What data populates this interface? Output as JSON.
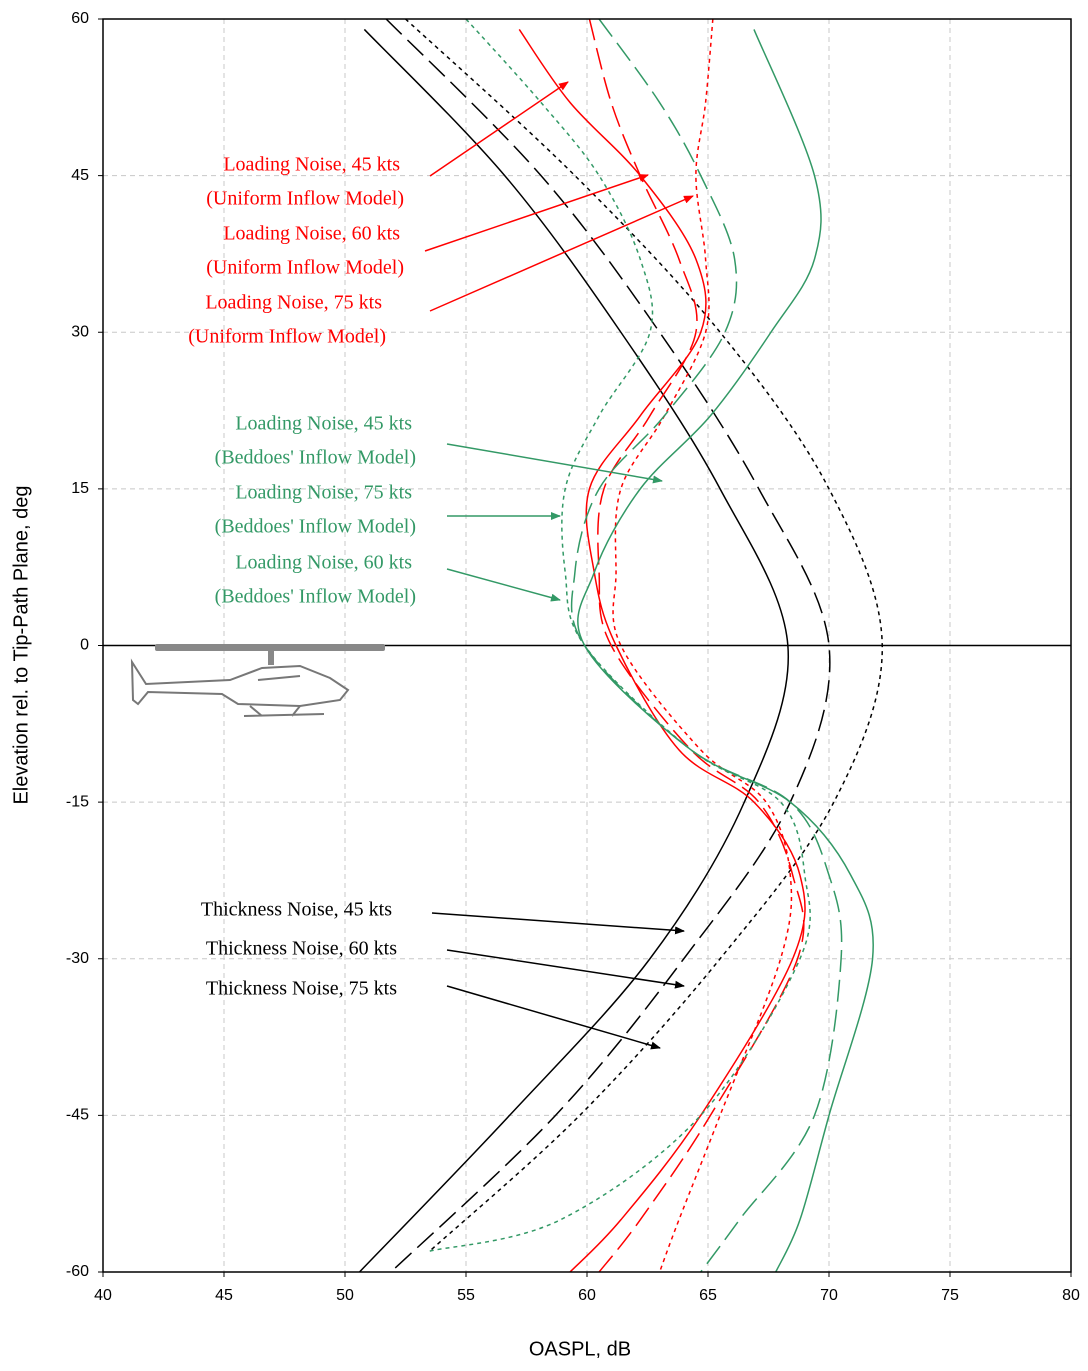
{
  "chart_data": {
    "type": "line",
    "x_label": "OASPL, dB",
    "y_label": "Elevation rel. to Tip-Path Plane, deg",
    "xlim": [
      40,
      80
    ],
    "xticks": [
      40,
      45,
      50,
      55,
      60,
      65,
      70,
      75,
      80
    ],
    "ylim": [
      -60,
      60
    ],
    "yticks": [
      -60,
      -45,
      -30,
      -15,
      0,
      15,
      30,
      45,
      60
    ],
    "grid": true,
    "series": [
      {
        "name": "Thickness Noise, 45 kts",
        "color": "#000000",
        "dash": "solid",
        "x": [
          50.8,
          56.6,
          61.4,
          65.5,
          68.3,
          66.5,
          62.6,
          56.8,
          50.6
        ],
        "values": [
          59,
          45,
          30,
          15,
          0,
          -15,
          -30,
          -45,
          -60
        ]
      },
      {
        "name": "Thickness Noise, 60 kts",
        "color": "#000000",
        "dash": "dashed",
        "x": [
          51.7,
          58.1,
          63.0,
          67.1,
          70.0,
          68.4,
          64.0,
          58.7,
          51.9
        ],
        "values": [
          60,
          45,
          30,
          15,
          0,
          -15,
          -30,
          -45,
          -60
        ]
      },
      {
        "name": "Thickness Noise, 75 kts",
        "color": "#000000",
        "dash": "dotted",
        "x": [
          52.5,
          59.5,
          65.5,
          70.0,
          72.2,
          70.2,
          65.5,
          59.7,
          53.5
        ],
        "values": [
          60,
          45,
          30,
          15,
          0,
          -15,
          -30,
          -45,
          -58
        ]
      },
      {
        "name": "Loading Noise, 45 kts",
        "note": "(Uniform Inflow Model)",
        "color": "#ff0000",
        "dash": "solid",
        "x": [
          57.2,
          59.3,
          62.2,
          64.5,
          64.7,
          62.2,
          60.1,
          60.3,
          61.2,
          63.8,
          66.9,
          68.8,
          68.5,
          64.7,
          61.4,
          59.3
        ],
        "values": [
          59,
          52,
          45,
          37,
          30,
          22,
          15,
          7,
          0,
          -10,
          -15,
          -22,
          -30,
          -45,
          -55,
          -60
        ]
      },
      {
        "name": "Loading Noise, 60 kts",
        "note": "(Uniform Inflow Model)",
        "color": "#ff0000",
        "dash": "dashed",
        "x": [
          60.1,
          61.0,
          62.2,
          63.8,
          64.5,
          62.6,
          60.7,
          60.5,
          61.0,
          64.3,
          67.1,
          68.5,
          68.7,
          65.1,
          62.2,
          60.5
        ],
        "values": [
          60,
          52,
          45,
          37,
          30,
          22,
          15,
          7,
          0,
          -10,
          -15,
          -22,
          -30,
          -45,
          -55,
          -60
        ]
      },
      {
        "name": "Loading Noise, 75 kts",
        "note": "(Uniform Inflow Model)",
        "color": "#ff0000",
        "dash": "dotted",
        "x": [
          65.2,
          64.9,
          64.5,
          64.9,
          64.9,
          63.2,
          61.4,
          61.2,
          61.4,
          64.7,
          67.4,
          68.4,
          68.0,
          65.5,
          63.8,
          63.0
        ],
        "values": [
          60,
          52,
          45,
          37,
          30,
          22,
          15,
          7,
          0,
          -10,
          -15,
          -22,
          -30,
          -45,
          -55,
          -60
        ]
      },
      {
        "name": "Loading Noise, 45 kts",
        "note": "(Beddoes' Inflow Model)",
        "color": "#339966",
        "dash": "solid",
        "x": [
          66.9,
          69.4,
          69.4,
          67.6,
          65.1,
          62.2,
          60.3,
          59.9,
          64.3,
          68.4,
          70.9,
          71.8,
          70.0,
          68.8,
          67.8
        ],
        "values": [
          59,
          45,
          37,
          30,
          22,
          15,
          7,
          0,
          -10,
          -15,
          -22,
          -30,
          -45,
          -55,
          -60
        ]
      },
      {
        "name": "Loading Noise, 60 kts",
        "note": "(Beddoes' Inflow Model)",
        "color": "#339966",
        "dash": "dashed",
        "x": [
          60.5,
          63.0,
          64.7,
          66.1,
          65.7,
          63.2,
          60.5,
          59.5,
          59.9,
          64.3,
          68.4,
          70.0,
          70.5,
          69.4,
          66.3,
          64.7
        ],
        "values": [
          60,
          52,
          45,
          37,
          30,
          22,
          15,
          7,
          0,
          -10,
          -15,
          -22,
          -30,
          -45,
          -55,
          -60
        ]
      },
      {
        "name": "Loading Noise, 75 kts",
        "note": "(Beddoes' Inflow Model)",
        "color": "#339966",
        "dash": "dotted",
        "x": [
          55.0,
          58.1,
          60.5,
          62.2,
          62.6,
          60.5,
          59.1,
          59.1,
          59.9,
          64.3,
          68.0,
          69.0,
          68.8,
          64.7,
          58.9,
          53.5
        ],
        "values": [
          60,
          52,
          45,
          37,
          30,
          22,
          15,
          7,
          0,
          -10,
          -15,
          -22,
          -30,
          -45,
          -55,
          -58
        ]
      }
    ]
  }
}
